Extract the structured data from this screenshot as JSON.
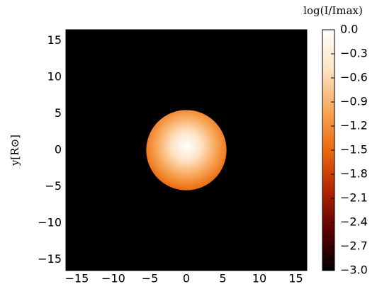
{
  "chart_data": {
    "type": "image",
    "ylabel": "y[R⊙]",
    "colorbar_label": "log(I/Imax)",
    "background": "#000000",
    "colormap": [
      "#000000",
      "#5a0000",
      "#b32400",
      "#ec6a0c",
      "#f8a75a",
      "#fde3c4",
      "#ffffff"
    ],
    "xlim": [
      -16.5,
      16.5
    ],
    "ylim": [
      -16.5,
      16.5
    ],
    "xticks": [
      {
        "value": -15,
        "label": "−15"
      },
      {
        "value": -10,
        "label": "−10"
      },
      {
        "value": -5,
        "label": "−5"
      },
      0,
      5,
      10,
      15
    ],
    "yticks": [
      {
        "value": -15,
        "label": "−15"
      },
      {
        "value": -10,
        "label": "−10"
      },
      {
        "value": -5,
        "label": "−5"
      },
      0,
      5,
      10,
      15
    ],
    "disk": {
      "x": 0,
      "y": 0,
      "radius": 5.5
    },
    "clim": [
      -3.0,
      0.0
    ],
    "cticks": [
      {
        "value": 0.0,
        "label": "0.0"
      },
      {
        "value": -0.3,
        "label": "−0.3"
      },
      {
        "value": -0.6,
        "label": "−0.6"
      },
      {
        "value": -0.9,
        "label": "−0.9"
      },
      {
        "value": -1.2,
        "label": "−1.2"
      },
      {
        "value": -1.5,
        "label": "−1.5"
      },
      {
        "value": -1.8,
        "label": "−1.8"
      },
      {
        "value": -2.1,
        "label": "−2.1"
      },
      {
        "value": -2.4,
        "label": "−2.4"
      },
      {
        "value": -2.7,
        "label": "−2.7"
      },
      {
        "value": -3.0,
        "label": "−3.0"
      }
    ]
  }
}
